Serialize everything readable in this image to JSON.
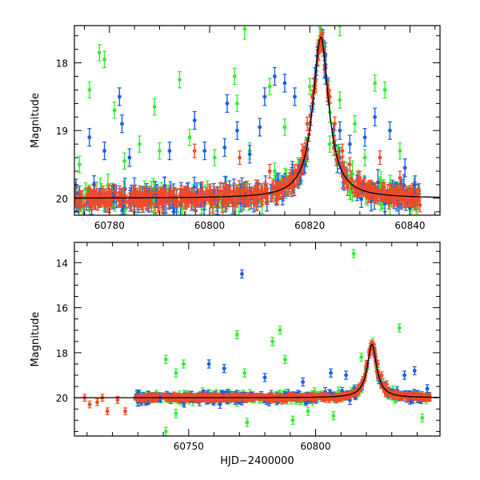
{
  "chart_data": [
    {
      "type": "scatter",
      "title": "",
      "xlabel": "",
      "ylabel": "Magnitude",
      "xlim": [
        60773,
        60846
      ],
      "ylim": [
        20.25,
        17.45
      ],
      "y_inverted": true,
      "xticks": [
        60780,
        60800,
        60820,
        60840
      ],
      "xtick_labels": [
        "60780",
        "60800",
        "60820",
        "60840"
      ],
      "yticks": [
        18,
        19,
        20
      ],
      "ytick_labels": [
        "18",
        "19",
        "20"
      ],
      "colors": {
        "green": "#33ee33",
        "blue": "#1a5fe0",
        "red": "#f04a28",
        "model": "#000000"
      },
      "model_curve": {
        "baseline": 20.0,
        "peak_x": 60822.2,
        "peak_y": 17.62,
        "width": 1.9
      },
      "series": [
        {
          "color": "green",
          "points": [
            [
              60776,
              18.4
            ],
            [
              60778,
              17.85
            ],
            [
              60779,
              17.95
            ],
            [
              60781,
              18.7
            ],
            [
              60789,
              18.65
            ],
            [
              60794,
              18.25
            ],
            [
              60805,
              18.2
            ],
            [
              60805.5,
              18.6
            ],
            [
              60812,
              18.35
            ],
            [
              60815,
              18.95
            ],
            [
              60820,
              18.35
            ],
            [
              60826,
              18.55
            ],
            [
              60829,
              18.9
            ],
            [
              60833,
              18.3
            ],
            [
              60835,
              18.4
            ],
            [
              60786,
              19.2
            ],
            [
              60790,
              19.3
            ],
            [
              60796,
              19.1
            ],
            [
              60801,
              19.4
            ],
            [
              60808,
              19.3
            ],
            [
              60824,
              19.2
            ],
            [
              60831,
              19.4
            ],
            [
              60838,
              19.3
            ],
            [
              60774,
              19.5
            ],
            [
              60783,
              19.45
            ],
            [
              60813,
              19.6
            ],
            [
              60828,
              19.9
            ]
          ],
          "errors": 0.12
        },
        {
          "color": "blue",
          "points": [
            [
              60782,
              18.5
            ],
            [
              60782.5,
              18.9
            ],
            [
              60797,
              18.85
            ],
            [
              60803,
              19.25
            ],
            [
              60803.5,
              18.6
            ],
            [
              60805.5,
              19.0
            ],
            [
              60810,
              18.95
            ],
            [
              60811,
              18.5
            ],
            [
              60813,
              18.2
            ],
            [
              60815,
              18.3
            ],
            [
              60817,
              18.5
            ],
            [
              60821.5,
              17.9
            ],
            [
              60823,
              18.1
            ],
            [
              60826,
              19.0
            ],
            [
              60828,
              19.2
            ],
            [
              60831,
              19.1
            ],
            [
              60833,
              18.8
            ],
            [
              60836,
              19.0
            ],
            [
              60839,
              19.55
            ],
            [
              60776,
              19.1
            ],
            [
              60779,
              19.3
            ],
            [
              60784,
              19.4
            ],
            [
              60792,
              19.3
            ],
            [
              60799,
              19.3
            ],
            [
              60808,
              19.35
            ],
            [
              60819,
              19.5
            ],
            [
              60841,
              19.8
            ]
          ],
          "errors": 0.13
        },
        {
          "color": "red",
          "points": [
            [
              60821.6,
              17.95
            ],
            [
              60822,
              17.75
            ],
            [
              60822.3,
              17.6
            ],
            [
              60822.7,
              17.8
            ],
            [
              60823,
              18.05
            ],
            [
              60820.5,
              18.5
            ],
            [
              60819.5,
              18.9
            ],
            [
              60818.5,
              19.3
            ],
            [
              60817,
              19.6
            ],
            [
              60815,
              19.8
            ],
            [
              60824,
              18.5
            ],
            [
              60825,
              18.9
            ],
            [
              60826.5,
              19.3
            ],
            [
              60828,
              19.5
            ],
            [
              60830,
              19.7
            ],
            [
              60832,
              19.9
            ],
            [
              60797,
              19.3
            ],
            [
              60806,
              19.4
            ],
            [
              60812,
              19.6
            ],
            [
              60834,
              19.4
            ],
            [
              60838,
              19.7
            ],
            [
              60842,
              20.1
            ]
          ],
          "errors": 0.1
        },
        {
          "color": "green",
          "points": [
            [
              60807,
              17.5
            ],
            [
              60826,
              17.45
            ]
          ],
          "errors": 0.15
        }
      ]
    },
    {
      "type": "scatter",
      "title": "",
      "xlabel": "HJD−2400000",
      "ylabel": "Magnitude",
      "xlim": [
        60705,
        60849
      ],
      "ylim": [
        21.7,
        13.1
      ],
      "y_inverted": true,
      "xticks": [
        60750,
        60800
      ],
      "xtick_labels": [
        "60750",
        "60800"
      ],
      "yticks": [
        14,
        16,
        18,
        20
      ],
      "ytick_labels": [
        "14",
        "16",
        "18",
        "20"
      ],
      "colors": {
        "green": "#33ee33",
        "blue": "#1a5fe0",
        "red": "#f04a28",
        "model": "#000000"
      },
      "model_curve": {
        "baseline": 20.0,
        "peak_x": 60822.2,
        "peak_y": 17.62,
        "width": 2.2
      },
      "series": [
        {
          "color": "green",
          "points": [
            [
              60815,
              13.6
            ],
            [
              60769,
              17.2
            ],
            [
              60783,
              17.5
            ],
            [
              60786,
              17.0
            ],
            [
              60818,
              18.2
            ],
            [
              60833,
              16.9
            ],
            [
              60788,
              18.3
            ],
            [
              60741,
              18.3
            ],
            [
              60748,
              18.5
            ],
            [
              60745,
              18.9
            ],
            [
              60772,
              18.9
            ],
            [
              60745,
              20.7
            ],
            [
              60773,
              21.1
            ],
            [
              60791,
              21.0
            ],
            [
              60797,
              20.6
            ],
            [
              60741,
              21.5
            ],
            [
              60842,
              20.9
            ],
            [
              60807,
              20.8
            ]
          ],
          "errors": 0.18
        },
        {
          "color": "blue",
          "points": [
            [
              60771,
              14.5
            ],
            [
              60758,
              18.5
            ],
            [
              60764,
              18.7
            ],
            [
              60806,
              18.9
            ],
            [
              60812,
              19.0
            ],
            [
              60835,
              19.0
            ],
            [
              60839,
              18.8
            ],
            [
              60844,
              19.6
            ],
            [
              60780,
              19.1
            ],
            [
              60795,
              19.3
            ]
          ],
          "errors": 0.18
        },
        {
          "color": "red",
          "points": [
            [
              60709,
              20.0
            ],
            [
              60711,
              20.3
            ],
            [
              60714,
              20.2
            ],
            [
              60716,
              20.0
            ],
            [
              60718,
              20.6
            ],
            [
              60722,
              20.1
            ],
            [
              60725,
              20.6
            ],
            [
              60822,
              17.6
            ],
            [
              60823,
              17.8
            ],
            [
              60821.3,
              18.1
            ],
            [
              60820,
              18.5
            ],
            [
              60824.5,
              18.5
            ],
            [
              60826,
              19.0
            ],
            [
              60828,
              19.4
            ]
          ],
          "errors": 0.15
        }
      ]
    }
  ]
}
